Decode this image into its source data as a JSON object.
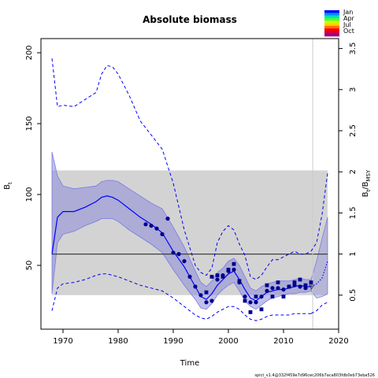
{
  "chart_data": {
    "type": "line",
    "title": "Absolute biomass",
    "xlabel": "Time",
    "ylabel_left": "B_t",
    "ylabel_right": "B_t/B_MSY",
    "footer": "spict_v1.4@332f459e7d96cec206b7aca803fdb0eb73eba526",
    "xlim": [
      1966,
      2020
    ],
    "ylim": [
      5,
      210
    ],
    "right_ylim": [
      0.08,
      3.6
    ],
    "bmsy": 58,
    "xticks": [
      1970,
      1980,
      1990,
      2000,
      2010,
      2020
    ],
    "yticks": [
      50,
      100,
      150,
      200
    ],
    "right_ticks": [
      0.5,
      1,
      1.5,
      2,
      2.5,
      3,
      3.5
    ],
    "bmsy_band": [
      29,
      117
    ],
    "forecast_start": 2015.3,
    "colorbar_labels": [
      "Jan",
      "Apr",
      "Jul",
      "Oct"
    ],
    "years": [
      1968,
      1969,
      1970,
      1972,
      1974,
      1976,
      1977,
      1978,
      1979,
      1980,
      1982,
      1984,
      1986,
      1988,
      1990,
      1992,
      1994,
      1995,
      1996,
      1997,
      1998,
      1999,
      2000,
      2001,
      2002,
      2003,
      2004,
      2005,
      2006,
      2007,
      2008,
      2009,
      2010,
      2011,
      2012,
      2013,
      2014,
      2015
    ],
    "estimate": [
      58,
      84,
      88,
      88,
      91,
      95,
      98,
      99,
      98,
      96,
      90,
      84,
      79,
      73,
      60,
      49,
      35,
      28,
      26,
      30,
      36,
      40,
      44,
      46,
      40,
      33,
      27,
      25,
      28,
      31,
      32,
      33,
      33,
      34,
      35,
      36,
      35,
      35
    ],
    "lower": [
      30,
      66,
      72,
      74,
      78,
      81,
      83,
      83,
      83,
      81,
      75,
      70,
      65,
      59,
      47,
      36,
      26,
      20,
      19,
      23,
      29,
      33,
      36,
      38,
      32,
      25,
      21,
      19,
      22,
      25,
      27,
      28,
      29,
      30,
      30,
      31,
      31,
      32
    ],
    "upper": [
      130,
      113,
      106,
      104,
      105,
      106,
      109,
      110,
      110,
      109,
      104,
      99,
      94,
      90,
      77,
      63,
      46,
      38,
      35,
      39,
      45,
      48,
      53,
      55,
      50,
      42,
      34,
      32,
      35,
      37,
      38,
      39,
      39,
      39,
      40,
      41,
      40,
      40
    ],
    "upper_dashed": [
      196,
      162,
      163,
      162,
      167,
      172,
      185,
      191,
      190,
      185,
      170,
      152,
      142,
      132,
      108,
      75,
      50,
      45,
      43,
      48,
      66,
      74,
      78,
      75,
      65,
      57,
      42,
      40,
      43,
      49,
      54,
      54,
      56,
      58,
      60,
      58,
      58,
      60
    ],
    "lower_dashed": [
      18,
      34,
      37,
      38,
      40,
      43,
      44,
      44,
      43,
      42,
      39,
      36,
      34,
      32,
      27,
      21,
      15,
      13,
      12,
      14,
      17,
      19,
      21,
      21,
      19,
      15,
      12,
      11,
      12,
      14,
      15,
      15,
      15,
      15,
      16,
      16,
      16,
      16
    ],
    "forecast_years": [
      2015,
      2016,
      2017,
      2018
    ],
    "forecast_estimate": [
      35,
      37,
      41,
      53
    ],
    "forecast_lower": [
      32,
      27,
      28,
      30
    ],
    "forecast_upper": [
      40,
      53,
      69,
      84
    ],
    "forecast_upper_dashed": [
      60,
      66,
      86,
      115
    ],
    "forecast_lower_dashed": [
      16,
      18,
      22,
      24
    ],
    "obs_circles_x": [
      1985,
      1986,
      1987,
      1988,
      1989,
      1990,
      1991,
      1992,
      1993,
      1994,
      1995,
      1996,
      1997,
      1998,
      1999,
      2000,
      2001,
      2002,
      2003,
      2004,
      2005,
      2006,
      2007,
      2008,
      2009,
      2010,
      2011,
      2012,
      2013,
      2014
    ],
    "obs_circles_y": [
      79,
      78,
      76,
      72,
      83,
      59,
      58,
      53,
      42,
      35,
      29,
      24,
      25,
      40,
      43,
      46,
      47,
      38,
      28,
      24,
      24,
      28,
      32,
      34,
      34,
      33,
      35,
      36,
      35,
      34
    ],
    "obs_squares_x": [
      1996,
      1997,
      1998,
      1999,
      2000,
      2001,
      2002,
      2003,
      2004,
      2005,
      2006,
      2007,
      2008,
      2009,
      2010,
      2011,
      2012,
      2013,
      2014,
      2015
    ],
    "obs_squares_y": [
      31,
      42,
      43,
      42,
      47,
      51,
      39,
      25,
      17,
      28,
      19,
      36,
      28,
      38,
      28,
      35,
      38,
      40,
      36,
      38
    ],
    "colors": {
      "estimate": "#0000ff",
      "ci_band": "#8c8cd9",
      "bmsy_band": "#d3d3d3",
      "bmsy_line": "#404040",
      "points": "#00008b",
      "forecast_line": "#aaaaaa"
    }
  }
}
